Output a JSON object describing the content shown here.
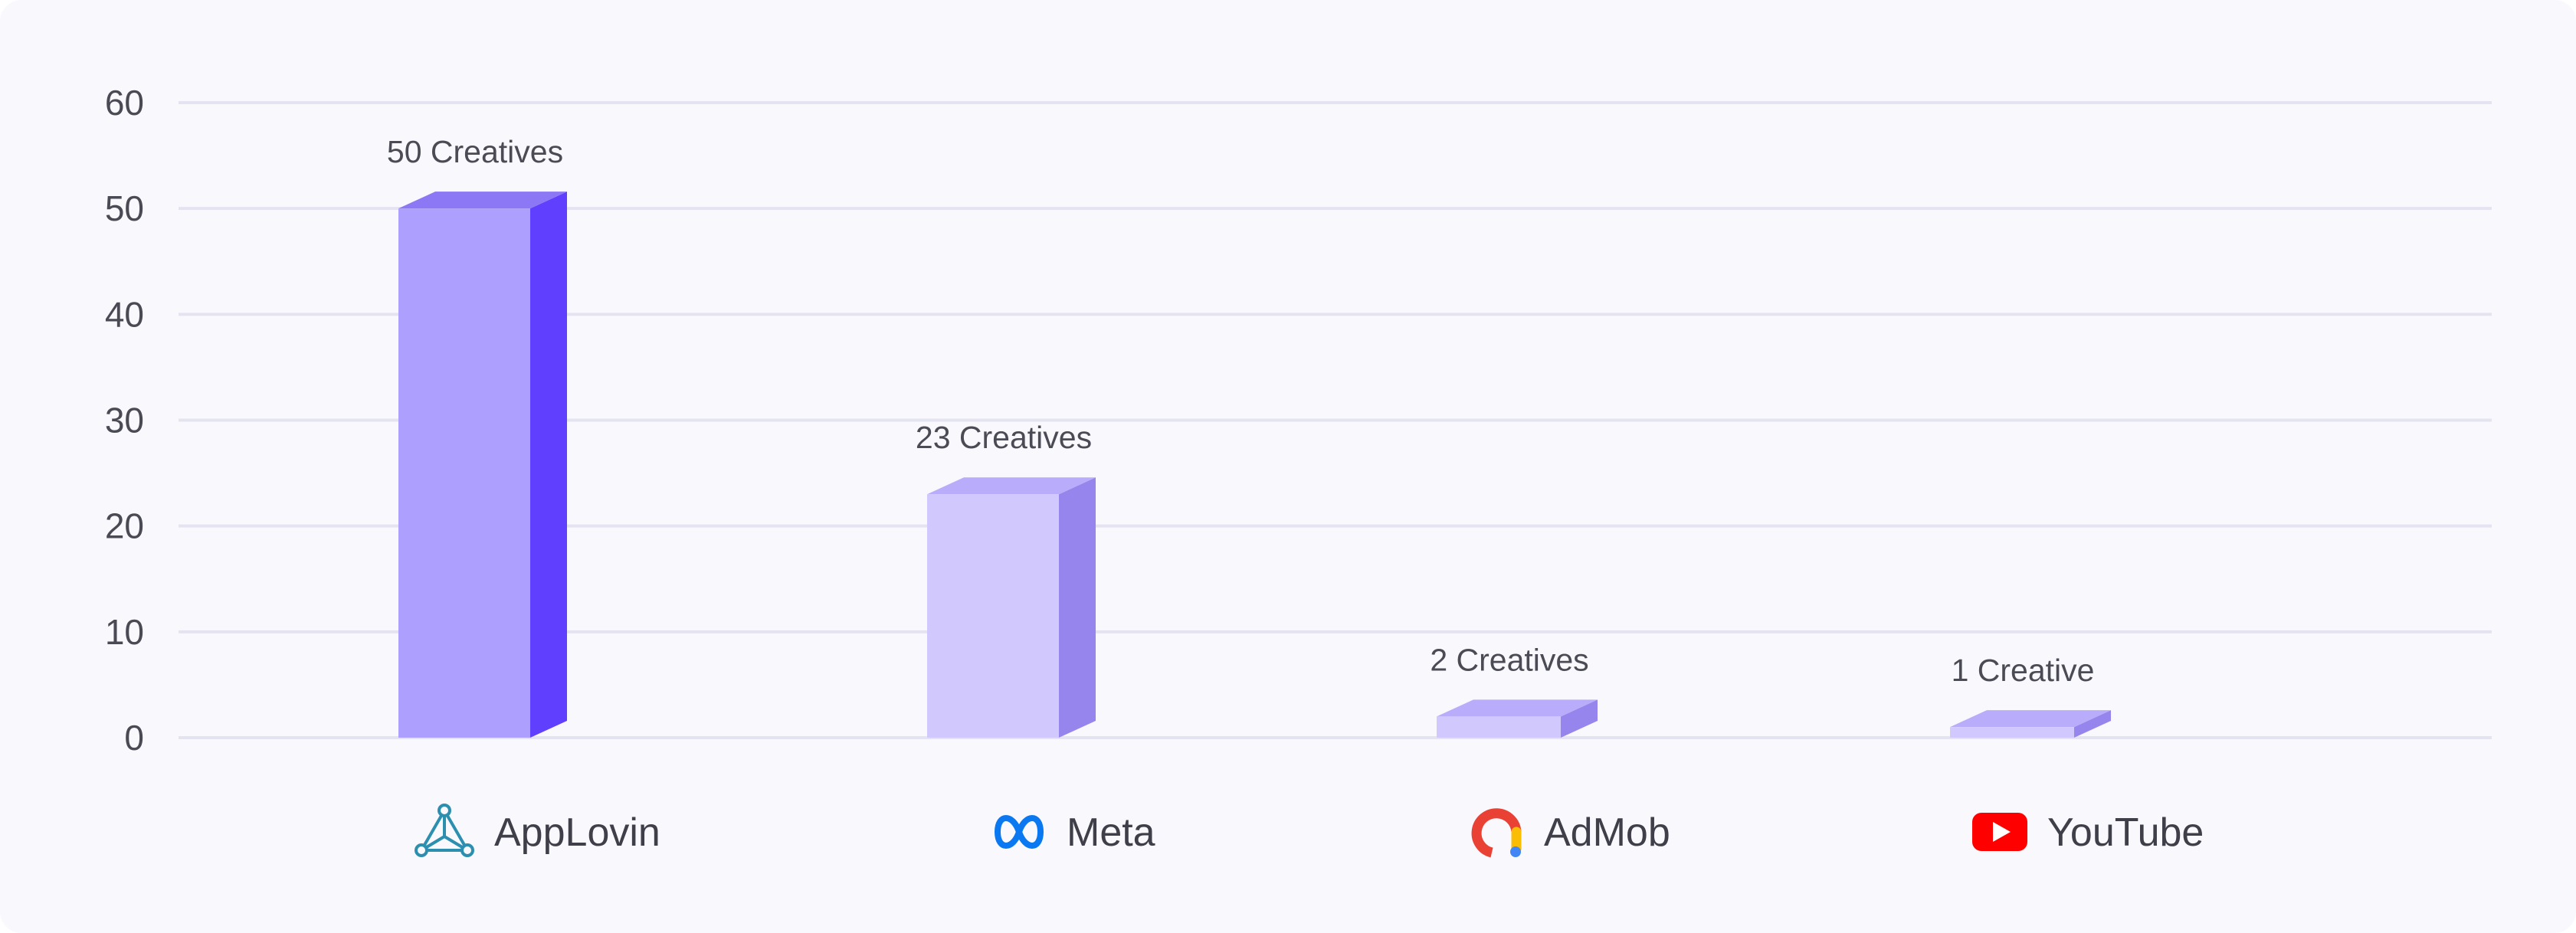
{
  "chart_data": {
    "type": "bar",
    "categories": [
      "AppLovin",
      "Meta",
      "AdMob",
      "YouTube"
    ],
    "values": [
      50,
      23,
      2,
      1
    ],
    "data_labels": [
      "50 Creatives",
      "23 Creatives",
      "2 Creatives",
      "1 Creative"
    ],
    "category_icons": [
      "applovin-logo-icon",
      "meta-logo-icon",
      "admob-logo-icon",
      "youtube-logo-icon"
    ],
    "ylim": [
      0,
      60
    ],
    "yticks": [
      0,
      10,
      20,
      30,
      40,
      50,
      60
    ],
    "grid": true,
    "bar_style": "3d",
    "colors": {
      "bar_fronts": [
        "#ad9ffd",
        "#d1c9fd",
        "#d1c9fd",
        "#d1c9fd"
      ],
      "bar_sides": [
        "#613ffe",
        "#9785ee",
        "#9785ee",
        "#9785ee"
      ],
      "bar_tops": [
        "#8c78f5",
        "#b9acfa",
        "#b9acfa",
        "#b9acfa"
      ],
      "grid": "#e4e3f1",
      "background": "#f9f8fd"
    }
  }
}
